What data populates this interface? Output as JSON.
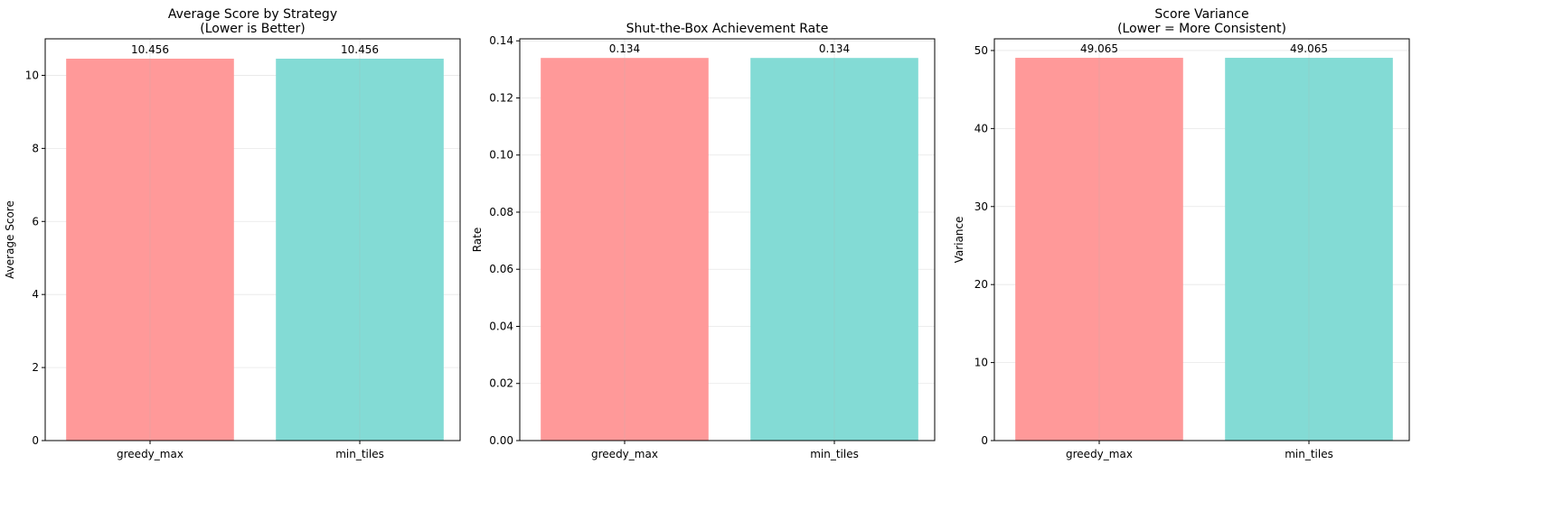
{
  "chart_data": [
    {
      "type": "bar",
      "title": "Average Score by Strategy\n(Lower is Better)",
      "xlabel": "",
      "ylabel": "Average Score",
      "categories": [
        "greedy_max",
        "min_tiles"
      ],
      "values": [
        10.456,
        10.456
      ],
      "value_labels": [
        "10.456",
        "10.456"
      ],
      "colors": [
        "#ff9999",
        "#83dbd5"
      ],
      "ylim": [
        0,
        11
      ],
      "yticks": [
        0,
        2,
        4,
        6,
        8,
        10
      ],
      "ytick_labels": [
        "0",
        "2",
        "4",
        "6",
        "8",
        "10"
      ],
      "grid": true
    },
    {
      "type": "bar",
      "title": "Shut-the-Box Achievement Rate",
      "xlabel": "",
      "ylabel": "Rate",
      "categories": [
        "greedy_max",
        "min_tiles"
      ],
      "values": [
        0.134,
        0.134
      ],
      "value_labels": [
        "0.134",
        "0.134"
      ],
      "colors": [
        "#ff9999",
        "#83dbd5"
      ],
      "ylim": [
        0,
        0.1407
      ],
      "yticks": [
        0,
        0.02,
        0.04,
        0.06,
        0.08,
        0.1,
        0.12,
        0.14
      ],
      "ytick_labels": [
        "0.00",
        "0.02",
        "0.04",
        "0.06",
        "0.08",
        "0.10",
        "0.12",
        "0.14"
      ],
      "grid": true
    },
    {
      "type": "bar",
      "title": "Score Variance\n(Lower = More Consistent)",
      "xlabel": "",
      "ylabel": "Variance",
      "categories": [
        "greedy_max",
        "min_tiles"
      ],
      "values": [
        49.065,
        49.065
      ],
      "value_labels": [
        "49.065",
        "49.065"
      ],
      "colors": [
        "#ff9999",
        "#83dbd5"
      ],
      "ylim": [
        0,
        51.5
      ],
      "yticks": [
        0,
        10,
        20,
        30,
        40,
        50
      ],
      "ytick_labels": [
        "0",
        "10",
        "20",
        "30",
        "40",
        "50"
      ],
      "grid": true
    }
  ]
}
